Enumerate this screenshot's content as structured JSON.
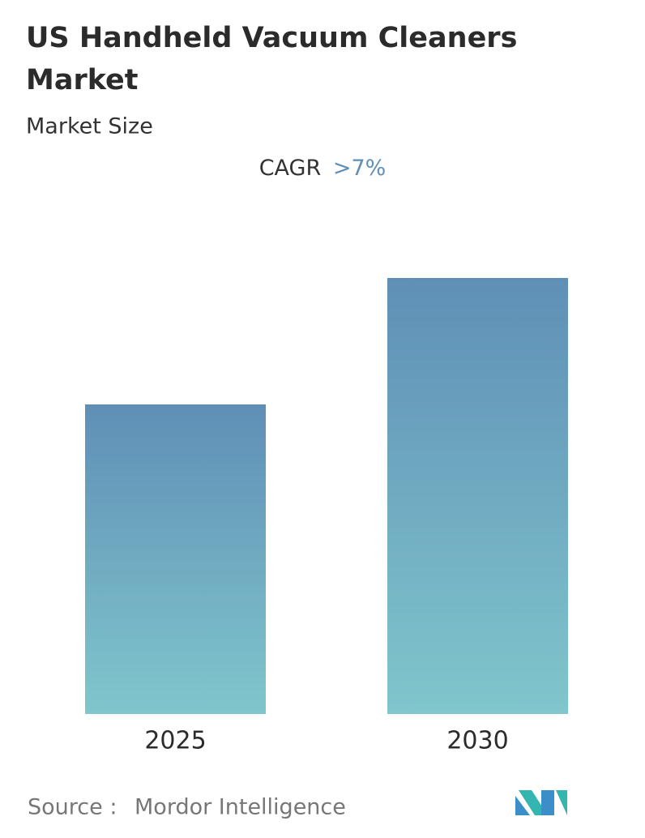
{
  "chart_data": {
    "type": "bar",
    "title_lines": [
      "US Handheld Vacuum Cleaners",
      "Market"
    ],
    "subtitle": "Market Size",
    "cagr_label": "CAGR",
    "cagr_value": ">7%",
    "categories": [
      "2025",
      "2030"
    ],
    "values": [
      71,
      100
    ],
    "source_label": "Source :",
    "source": "Mordor Intelligence"
  }
}
